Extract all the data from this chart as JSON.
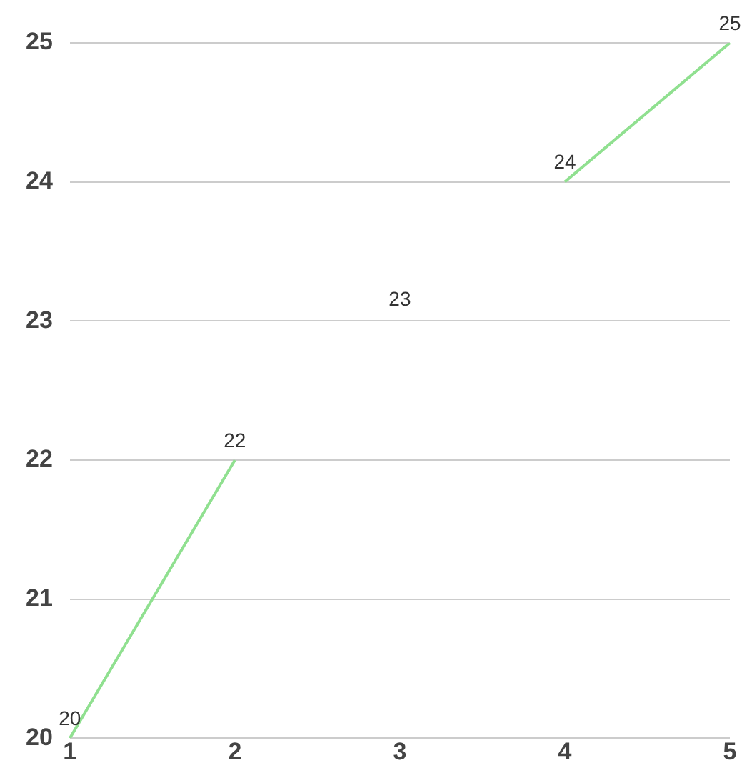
{
  "chart_data": {
    "type": "line",
    "categories": [
      "1",
      "2",
      "3",
      "4",
      "5"
    ],
    "series": [
      {
        "color": "#90e090",
        "values": [
          20,
          22,
          null,
          24,
          25
        ]
      }
    ],
    "annotations": [
      "23"
    ],
    "ylim": [
      20,
      25
    ],
    "yticks": [
      20,
      21,
      22,
      23,
      24,
      25
    ],
    "grid": "y",
    "legend": false,
    "marker": "none",
    "line_style": "solid",
    "data_labels": true
  }
}
